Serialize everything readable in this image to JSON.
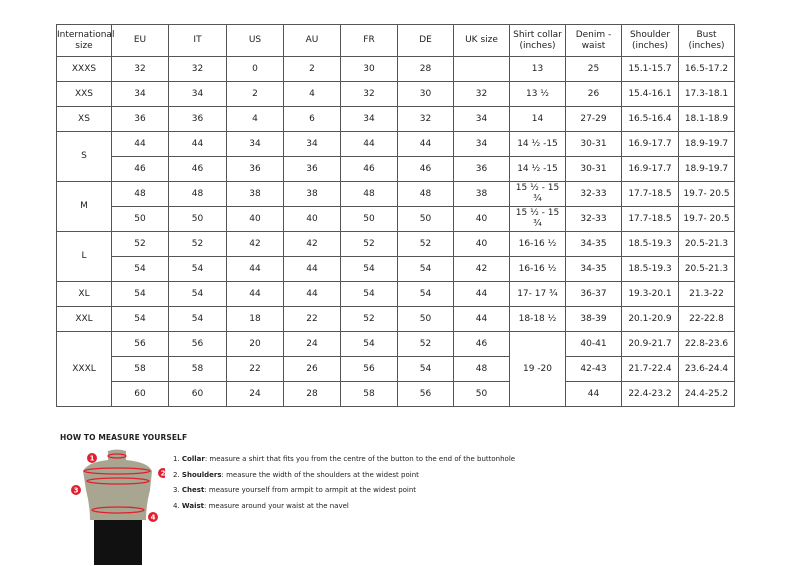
{
  "headers": [
    "International size",
    "EU",
    "IT",
    "US",
    "AU",
    "FR",
    "DE",
    "UK size",
    "Shirt collar (inches)",
    "Denim - waist",
    "Shoulder (inches)",
    "Bust (inches)"
  ],
  "groups": [
    {
      "size": "XXXS",
      "rows": [
        [
          "32",
          "32",
          "0",
          "2",
          "30",
          "28",
          "",
          "13",
          "25",
          "15.1-15.7",
          "16.5-17.2"
        ]
      ]
    },
    {
      "size": "XXS",
      "rows": [
        [
          "34",
          "34",
          "2",
          "4",
          "32",
          "30",
          "32",
          "13 ½",
          "26",
          "15.4-16.1",
          "17.3-18.1"
        ]
      ]
    },
    {
      "size": "XS",
      "rows": [
        [
          "36",
          "36",
          "4",
          "6",
          "34",
          "32",
          "34",
          "14",
          "27-29",
          "16.5-16.4",
          "18.1-18.9"
        ]
      ]
    },
    {
      "size": "S",
      "rows": [
        [
          "44",
          "44",
          "34",
          "34",
          "44",
          "44",
          "34",
          "14 ½ -15",
          "30-31",
          "16.9-17.7",
          "18.9-19.7"
        ],
        [
          "46",
          "46",
          "36",
          "36",
          "46",
          "46",
          "36",
          "14 ½ -15",
          "30-31",
          "16.9-17.7",
          "18.9-19.7"
        ]
      ]
    },
    {
      "size": "M",
      "rows": [
        [
          "48",
          "48",
          "38",
          "38",
          "48",
          "48",
          "38",
          "15 ½ - 15 ¾",
          "32-33",
          "17.7-18.5",
          "19.7- 20.5"
        ],
        [
          "50",
          "50",
          "40",
          "40",
          "50",
          "50",
          "40",
          "15 ½ - 15 ¾",
          "32-33",
          "17.7-18.5",
          "19.7- 20.5"
        ]
      ]
    },
    {
      "size": "L",
      "rows": [
        [
          "52",
          "52",
          "42",
          "42",
          "52",
          "52",
          "40",
          "16-16 ½",
          "34-35",
          "18.5-19.3",
          "20.5-21.3"
        ],
        [
          "54",
          "54",
          "44",
          "44",
          "54",
          "54",
          "42",
          "16-16 ½",
          "34-35",
          "18.5-19.3",
          "20.5-21.3"
        ]
      ]
    },
    {
      "size": "XL",
      "rows": [
        [
          "54",
          "54",
          "44",
          "44",
          "54",
          "54",
          "44",
          "17- 17 ¾",
          "36-37",
          "19.3-20.1",
          "21.3-22"
        ]
      ]
    },
    {
      "size": "XXL",
      "rows": [
        [
          "54",
          "54",
          "18",
          "22",
          "52",
          "50",
          "44",
          "18-18 ½",
          "38-39",
          "20.1-20.9",
          "22-22.8"
        ]
      ]
    },
    {
      "size": "XXXL",
      "collar": "19 -20",
      "rows": [
        [
          "56",
          "56",
          "20",
          "24",
          "54",
          "52",
          "46",
          "",
          "40-41",
          "20.9-21.7",
          "22.8-23.6"
        ],
        [
          "58",
          "58",
          "22",
          "26",
          "56",
          "54",
          "48",
          "",
          "42-43",
          "21.7-22.4",
          "23.6-24.4"
        ],
        [
          "60",
          "60",
          "24",
          "28",
          "58",
          "56",
          "50",
          "",
          "44",
          "22.4-23.2",
          "24.4-25.2"
        ]
      ]
    }
  ],
  "measure": {
    "title": "HOW TO MEASURE YOURSELF",
    "steps": [
      {
        "n": "1.",
        "term": "Collar",
        "text": ": measure a shirt that fits you from the centre of the button to the end of the buttonhole"
      },
      {
        "n": "2.",
        "term": "Shoulders",
        "text": ": measure the width of the shoulders at the widest point"
      },
      {
        "n": "3.",
        "term": "Chest",
        "text": ": measure yourself from armpit to armpit at the widest point"
      },
      {
        "n": "4.",
        "term": "Waist",
        "text": ": measure around your waist at the navel"
      }
    ],
    "markers": [
      "1",
      "2",
      "3",
      "4"
    ],
    "accent": "#e0202e"
  }
}
